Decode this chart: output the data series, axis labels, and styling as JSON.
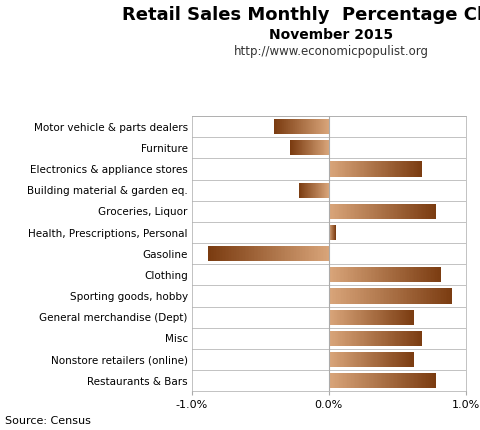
{
  "title": "Retail Sales Monthly  Percentage Change",
  "subtitle": "November 2015",
  "url": "http://www.economicpopulist.org",
  "source": "Source: Census",
  "categories": [
    "Motor vehicle & parts dealers",
    "Furniture",
    "Electronics & appliance stores",
    "Building material & garden eq.",
    "Groceries, Liquor",
    "Health, Prescriptions, Personal",
    "Gasoline",
    "Clothing",
    "Sporting goods, hobby",
    "General merchandise (Dept)",
    "Misc",
    "Nonstore retailers (online)",
    "Restaurants & Bars"
  ],
  "values": [
    -0.4,
    -0.28,
    0.68,
    -0.22,
    0.78,
    0.05,
    -0.88,
    0.82,
    0.9,
    0.62,
    0.68,
    0.62,
    0.78
  ],
  "xlim": [
    -1.0,
    1.0
  ],
  "bg_color": "#ffffff",
  "light_color": [
    0.851,
    0.647,
    0.478
  ],
  "dark_color": [
    0.478,
    0.231,
    0.063
  ],
  "grid_color": "#aaaaaa",
  "title_fontsize": 13,
  "subtitle_fontsize": 10,
  "url_fontsize": 8.5,
  "label_fontsize": 7.5,
  "tick_fontsize": 8,
  "source_fontsize": 8
}
